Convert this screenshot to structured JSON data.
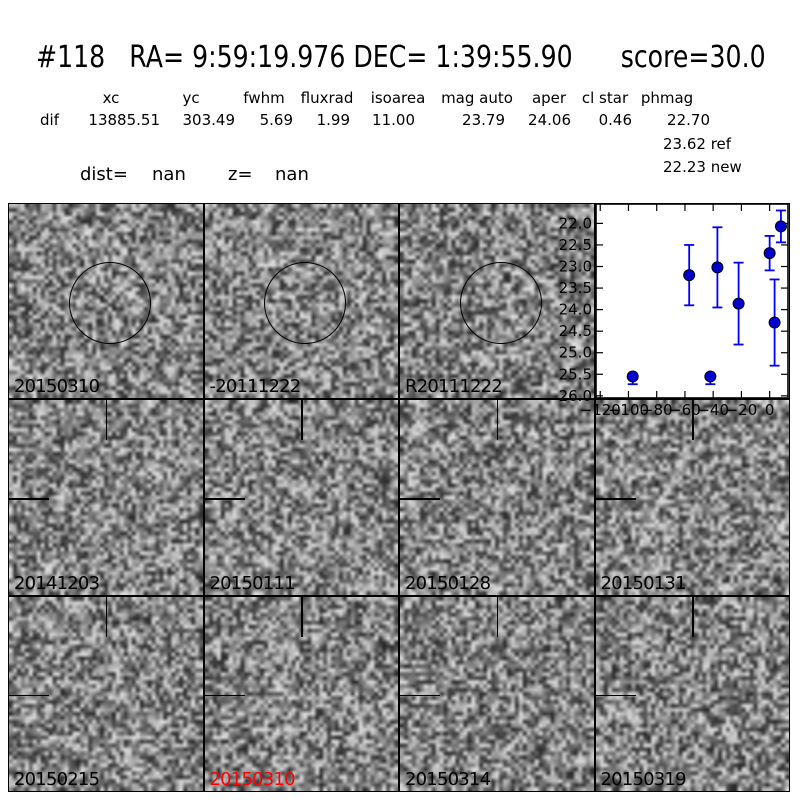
{
  "header": {
    "title": "#118   RA= 9:59:19.976 DEC= 1:39:55.90      score=30.0"
  },
  "stats": {
    "columns": [
      "xc",
      "yc",
      "fwhm",
      "fluxrad",
      "isoarea",
      "mag auto",
      "aper",
      "cl star",
      "phmag"
    ],
    "row_label": "dif",
    "values": [
      "13885.51",
      "303.49",
      "5.69",
      "1.99",
      "11.00",
      "23.79",
      "24.06",
      "0.46",
      "22.70"
    ],
    "ref_value": "23.62 ref",
    "new_value": "22.23 new",
    "dist_label": "dist=",
    "dist_value": "nan",
    "z_label": "z=",
    "z_value": "nan"
  },
  "panels": [
    {
      "label": "20150310",
      "type": "circle",
      "label_color": "#000000"
    },
    {
      "label": "-20111222",
      "type": "circle",
      "label_color": "#000000"
    },
    {
      "label": "R20111222",
      "type": "circle",
      "label_color": "#000000"
    },
    {
      "label": "",
      "type": "plot",
      "label_color": "#000000"
    },
    {
      "label": "20141203",
      "type": "cross",
      "label_color": "#000000"
    },
    {
      "label": "20150111",
      "type": "cross",
      "label_color": "#000000"
    },
    {
      "label": "20150128",
      "type": "cross",
      "label_color": "#000000"
    },
    {
      "label": "20150131",
      "type": "cross",
      "label_color": "#000000"
    },
    {
      "label": "20150215",
      "type": "cross",
      "label_color": "#000000"
    },
    {
      "label": "20150310",
      "type": "cross",
      "label_color": "#ff0000"
    },
    {
      "label": "20150314",
      "type": "cross",
      "label_color": "#000000"
    },
    {
      "label": "20150319",
      "type": "cross",
      "label_color": "#000000"
    }
  ],
  "chart_data": {
    "type": "scatter",
    "title": "",
    "xlabel": "",
    "ylabel": "",
    "x_ticks": [
      -120,
      -100,
      -80,
      -60,
      -40,
      -20,
      0
    ],
    "y_ticks": [
      22.0,
      22.5,
      23.0,
      23.5,
      24.0,
      24.5,
      25.0,
      25.5,
      26.0
    ],
    "xlim": [
      -123,
      13
    ],
    "ylim": [
      26.05,
      21.55
    ],
    "y_axis_inverted": true,
    "grid": false,
    "legend": null,
    "marker_color": "#0000cd",
    "errorbar_color": "#0000ff",
    "points": [
      {
        "x": -97,
        "mag": 25.55,
        "err_minus": 0.0,
        "err_plus": 0.18
      },
      {
        "x": -57,
        "mag": 23.2,
        "err_minus": 0.7,
        "err_plus": 0.7
      },
      {
        "x": -42,
        "mag": 25.55,
        "err_minus": 0.0,
        "err_plus": 0.18
      },
      {
        "x": -37,
        "mag": 23.02,
        "err_minus": 0.93,
        "err_plus": 0.93
      },
      {
        "x": -22,
        "mag": 23.86,
        "err_minus": 0.95,
        "err_plus": 0.95
      },
      {
        "x": 0,
        "mag": 22.69,
        "err_minus": 0.4,
        "err_plus": 0.4
      },
      {
        "x": 3.5,
        "mag": 24.3,
        "err_minus": 1.0,
        "err_plus": 1.0
      },
      {
        "x": 8,
        "mag": 22.07,
        "err_minus": 0.37,
        "err_plus": 0.37
      }
    ]
  }
}
